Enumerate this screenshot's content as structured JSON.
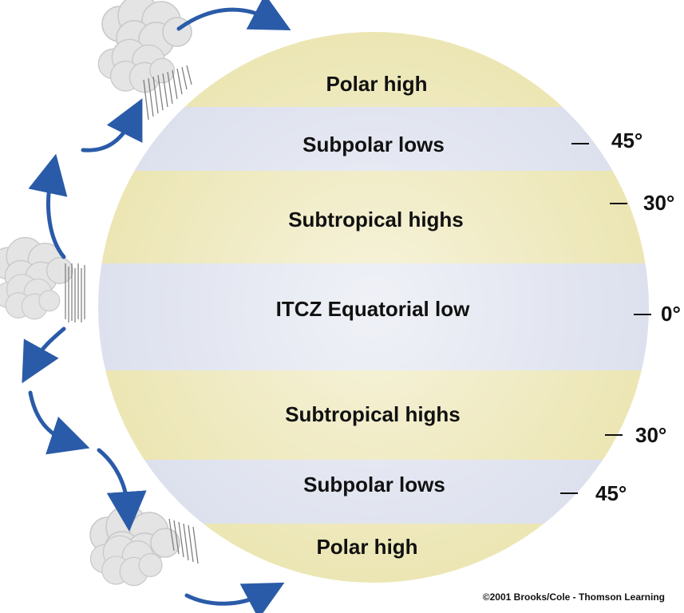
{
  "bands": [
    {
      "label": "Polar high",
      "kind": "high"
    },
    {
      "label": "Subpolar lows",
      "kind": "low"
    },
    {
      "label": "Subtropical highs",
      "kind": "high"
    },
    {
      "label": "ITCZ Equatorial low",
      "kind": "low"
    },
    {
      "label": "Subtropical highs",
      "kind": "high"
    },
    {
      "label": "Subpolar lows",
      "kind": "low"
    },
    {
      "label": "Polar high",
      "kind": "high"
    }
  ],
  "latitudes": [
    {
      "label": "45°"
    },
    {
      "label": "30°"
    },
    {
      "label": "0°"
    },
    {
      "label": "30°"
    },
    {
      "label": "45°"
    }
  ],
  "credit": "©2001 Brooks/Cole - Thomson Learning",
  "colors": {
    "high_band": "#ece6b4",
    "low_band": "#dde1ee",
    "arrow": "#2a5ba8",
    "cloud": "#e4e4e4",
    "text": "#111111"
  },
  "icons": [
    "cloud-icon",
    "rain-icon",
    "arrow-icon"
  ]
}
